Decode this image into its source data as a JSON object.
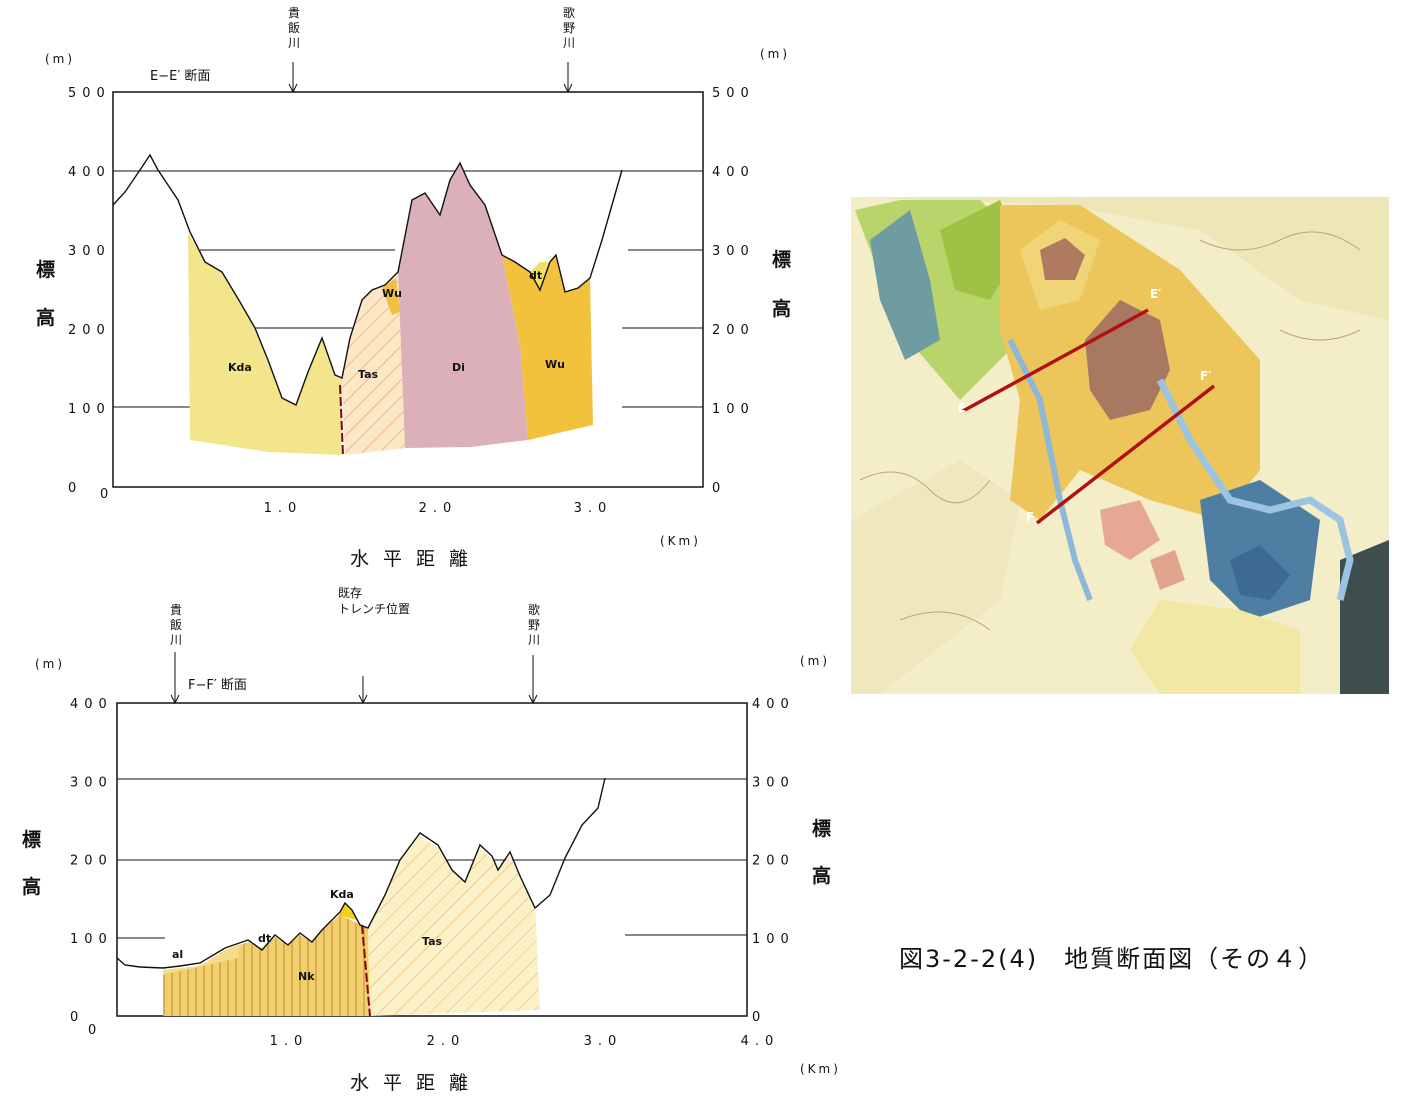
{
  "figure": {
    "caption": "図3-2-2(4)　地質断面図（その４）"
  },
  "section_e": {
    "title": "E−E′ 断面",
    "unit_left": "(m)",
    "unit_right": "(m)",
    "y_ticks_left": [
      "500",
      "400",
      "300",
      "200",
      "100",
      "0"
    ],
    "y_ticks_right": [
      "500",
      "400",
      "300",
      "200",
      "100",
      "0"
    ],
    "x_ticks": [
      "1.0",
      "2.0",
      "3.0"
    ],
    "x_unit": "(Km)",
    "y_title_left": [
      "標",
      "高"
    ],
    "y_title_right": [
      "標",
      "高"
    ],
    "x_title": "水平距離",
    "rivers": [
      {
        "name": "貴\n飯\n川",
        "x_km": 1.15
      },
      {
        "name": "歌\n野\n川",
        "x_km": 2.9
      }
    ],
    "units": [
      {
        "code": "Kda",
        "color": "#f2e48a",
        "x_km": 0.85,
        "y_m": 160
      },
      {
        "code": "Tas",
        "color": "#f6e2b5",
        "x_km": 1.65,
        "y_m": 150
      },
      {
        "code": "Wu",
        "color": "#f0c040",
        "x_km": 1.73,
        "y_m": 255
      },
      {
        "code": "Di",
        "color": "#dcb0b8",
        "x_km": 2.2,
        "y_m": 155
      },
      {
        "code": "Wu",
        "color": "#f0c040",
        "x_km": 2.8,
        "y_m": 155
      },
      {
        "code": "dt",
        "color": "#f0e070",
        "x_km": 2.7,
        "y_m": 285
      }
    ],
    "xlim": [
      0,
      3.7
    ],
    "ylim": [
      0,
      500
    ]
  },
  "section_f": {
    "title": "F−F′ 断面",
    "unit_left": "(m)",
    "unit_right": "(m)",
    "y_ticks_left": [
      "400",
      "300",
      "200",
      "100",
      "0"
    ],
    "y_ticks_right": [
      "400",
      "300",
      "200",
      "100",
      "0"
    ],
    "x_ticks": [
      "1.0",
      "2.0",
      "3.0",
      "4.0"
    ],
    "x_unit": "(Km)",
    "y_title_left": [
      "標",
      "高"
    ],
    "y_title_right": [
      "標",
      "高"
    ],
    "x_title": "水平距離",
    "rivers": [
      {
        "name": "貴\n飯\n川",
        "x_km": 0.35
      },
      {
        "name": "既存\nトレンチ位置",
        "x_km": 1.6
      },
      {
        "name": "歌\n野\n川",
        "x_km": 2.6
      }
    ],
    "units": [
      {
        "code": "al",
        "color": "#f4dd88",
        "x_km": 0.4,
        "y_m": 105
      },
      {
        "code": "dt",
        "color": "#f4dd88",
        "x_km": 0.95,
        "y_m": 120
      },
      {
        "code": "Nk",
        "color": "#f1d070",
        "x_km": 1.2,
        "y_m": 55
      },
      {
        "code": "Kda",
        "color": "#f2d020",
        "x_km": 1.45,
        "y_m": 170
      },
      {
        "code": "Tas",
        "color": "#fbeec0",
        "x_km": 2.0,
        "y_m": 95
      }
    ],
    "xlim": [
      0,
      4.0
    ],
    "ylim": [
      0,
      400
    ]
  },
  "map": {
    "labels": [
      "E",
      "E′",
      "F",
      "F′"
    ]
  }
}
